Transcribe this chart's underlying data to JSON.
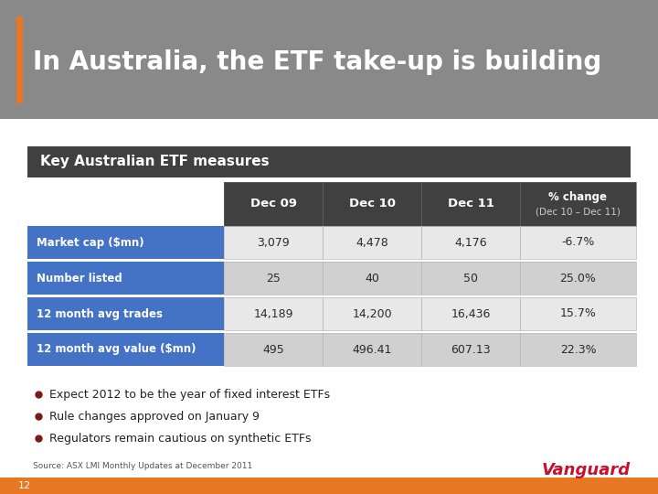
{
  "title": "In Australia, the ETF take-up is building",
  "subtitle_box": "Key Australian ETF measures",
  "title_bg": "#898989",
  "header_bg": "#404040",
  "row_label_bg": "#4472c4",
  "row_odd_bg": "#e8e8e8",
  "row_even_bg": "#d0d0d0",
  "col_headers_line1": [
    "Dec 09",
    "Dec 10",
    "Dec 11",
    "% change"
  ],
  "col_headers_line2": [
    "",
    "",
    "",
    "(Dec 10 – Dec 11)"
  ],
  "row_labels": [
    "Market cap ($mn)",
    "Number listed",
    "12 month avg trades",
    "12 month avg value ($mn)"
  ],
  "data": [
    [
      "3,079",
      "4,478",
      "4,176",
      "-6.7%"
    ],
    [
      "25",
      "40",
      "50",
      "25.0%"
    ],
    [
      "14,189",
      "14,200",
      "16,436",
      "15.7%"
    ],
    [
      "495",
      "496.41",
      "607.13",
      "22.3%"
    ]
  ],
  "bullets": [
    "Expect 2012 to be the year of fixed interest ETFs",
    "Rule changes approved on January 9",
    "Regulators remain cautious on synthetic ETFs"
  ],
  "source_text": "Source: ASX LMI Monthly Updates at December 2011",
  "footer_text": "12",
  "accent_color": "#e87722",
  "vanguard_color": "#c8102e",
  "slide_bg": "#ffffff",
  "title_text_color": "#ffffff",
  "bullet_color": "#7b1a1a"
}
